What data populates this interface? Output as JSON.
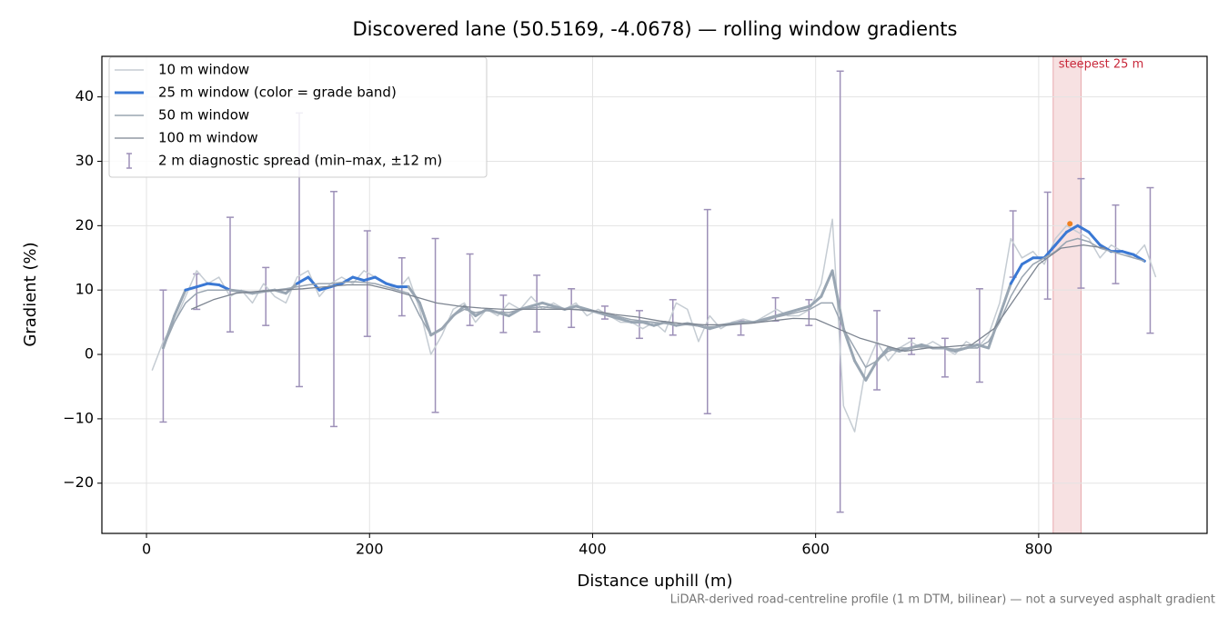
{
  "chart_data": {
    "type": "line",
    "title": "Discovered lane (50.5169, -4.0678) — rolling window gradients",
    "x_label": "Distance uphill (m)",
    "y_label": "Gradient (%)",
    "footnote": "LiDAR-derived road-centreline profile (1 m DTM, bilinear) — not a surveyed asphalt gradient",
    "xlim": [
      -40,
      951
    ],
    "ylim": [
      -27.8,
      46.3
    ],
    "xticks": [
      0,
      200,
      400,
      600,
      800
    ],
    "yticks": [
      {
        "value": -20,
        "label": "−20"
      },
      {
        "value": -10,
        "label": "−10"
      },
      0,
      10,
      20,
      30,
      40
    ],
    "grid": true,
    "legend": "upper left",
    "series": [
      {
        "name": "10 m window",
        "color": "#c5ccd3",
        "width": 1.5,
        "x": [
          5,
          15,
          25,
          35,
          45,
          55,
          65,
          75,
          85,
          95,
          105,
          115,
          125,
          135,
          145,
          155,
          165,
          175,
          185,
          195,
          205,
          215,
          225,
          235,
          245,
          255,
          265,
          275,
          285,
          295,
          305,
          315,
          325,
          335,
          345,
          355,
          365,
          375,
          385,
          395,
          405,
          415,
          425,
          435,
          445,
          455,
          465,
          475,
          485,
          495,
          505,
          515,
          525,
          535,
          545,
          555,
          565,
          575,
          585,
          595,
          605,
          615,
          625,
          635,
          645,
          655,
          665,
          675,
          685,
          695,
          705,
          715,
          725,
          735,
          745,
          755,
          765,
          775,
          785,
          795,
          805,
          815,
          825,
          835,
          845,
          855,
          865,
          875,
          885,
          895,
          905
        ],
        "values": [
          -2.5,
          2,
          5,
          9,
          13,
          11,
          12,
          9,
          10,
          8,
          11,
          9,
          8,
          12,
          13,
          9,
          11,
          12,
          11,
          13,
          12,
          11,
          10,
          12,
          7,
          0,
          3,
          7,
          8,
          5,
          7,
          6,
          8,
          7,
          9,
          7,
          8,
          7,
          8,
          6,
          7,
          6,
          5,
          5,
          4,
          5,
          3.5,
          8,
          7,
          2,
          6,
          4,
          5,
          5.5,
          5,
          6,
          7,
          6,
          6,
          7,
          11,
          21,
          -8,
          -12,
          -2,
          2,
          -1,
          1,
          2,
          1,
          2,
          1,
          0,
          2,
          1,
          3,
          8,
          18,
          15,
          16,
          14,
          18,
          20,
          19,
          18,
          15,
          17,
          16,
          15,
          17,
          12
        ]
      },
      {
        "name": "25 m window (color = grade band)",
        "color": "#3a78d4",
        "low_color": "#99a6b3",
        "band_min": 10,
        "width": 3,
        "x": [
          15,
          25,
          35,
          45,
          55,
          65,
          75,
          85,
          95,
          105,
          115,
          125,
          135,
          145,
          155,
          165,
          175,
          185,
          195,
          205,
          215,
          225,
          235,
          245,
          255,
          265,
          275,
          285,
          295,
          305,
          315,
          325,
          335,
          345,
          355,
          365,
          375,
          385,
          395,
          405,
          415,
          425,
          435,
          445,
          455,
          465,
          475,
          485,
          495,
          505,
          515,
          525,
          535,
          545,
          555,
          565,
          575,
          585,
          595,
          605,
          615,
          625,
          635,
          645,
          655,
          665,
          675,
          685,
          695,
          705,
          715,
          725,
          735,
          745,
          755,
          765,
          775,
          785,
          795,
          805,
          815,
          825,
          835,
          845,
          855,
          865,
          875,
          885,
          895
        ],
        "values": [
          1,
          6,
          10,
          10.5,
          11,
          10.8,
          10,
          9.8,
          9.5,
          9.8,
          10,
          9.5,
          11,
          12,
          10,
          10.5,
          11,
          12,
          11.5,
          12,
          11,
          10.5,
          10.5,
          8,
          3,
          4,
          6,
          7.5,
          6,
          7,
          6.5,
          6,
          7,
          7.5,
          8,
          7.5,
          7,
          7.5,
          7,
          6.5,
          6,
          5.5,
          5,
          5,
          4.5,
          5,
          4.5,
          4.8,
          4.5,
          4,
          4.5,
          4.8,
          5,
          5,
          5.5,
          6,
          6.5,
          7,
          7.5,
          9,
          13,
          4,
          -1,
          -4,
          -1,
          1,
          0.5,
          1,
          1.5,
          1,
          1,
          0.5,
          1,
          1.5,
          1,
          6,
          11,
          14,
          15,
          15,
          17,
          19,
          20,
          19,
          17,
          16,
          16,
          15.5,
          14.5
        ]
      },
      {
        "name": "50 m window",
        "color": "#9aa5b1",
        "width": 1.5,
        "x": [
          15,
          25,
          35,
          45,
          55,
          65,
          75,
          85,
          95,
          105,
          115,
          125,
          135,
          145,
          155,
          165,
          175,
          185,
          195,
          205,
          215,
          225,
          235,
          245,
          255,
          265,
          275,
          285,
          295,
          305,
          315,
          325,
          335,
          345,
          355,
          365,
          375,
          385,
          395,
          405,
          415,
          425,
          435,
          445,
          455,
          465,
          475,
          485,
          495,
          505,
          515,
          525,
          535,
          545,
          555,
          565,
          575,
          585,
          595,
          605,
          615,
          625,
          635,
          645,
          655,
          665,
          675,
          685,
          695,
          705,
          715,
          725,
          735,
          745,
          755,
          765,
          775,
          785,
          795,
          805,
          815,
          825,
          835,
          845,
          855,
          865,
          875,
          885,
          895
        ],
        "values": [
          1,
          5,
          8,
          9.5,
          10,
          10,
          10,
          9.8,
          9.6,
          9.7,
          10,
          10.2,
          10.5,
          10.8,
          11,
          11,
          11.2,
          11.3,
          11.2,
          11,
          10.5,
          10,
          9.5,
          6,
          3,
          4,
          6,
          7,
          6.5,
          6.8,
          6.6,
          6.5,
          7,
          7.2,
          7.4,
          7.2,
          7,
          7,
          6.8,
          6.5,
          6.2,
          5.8,
          5.4,
          5.2,
          5,
          4.8,
          4.6,
          4.6,
          4.4,
          4.3,
          4.4,
          4.6,
          4.8,
          5,
          5.3,
          5.8,
          6.2,
          6.6,
          7,
          8,
          8,
          4,
          1,
          -2,
          -1,
          0.5,
          1,
          1,
          1.2,
          1,
          1,
          0.8,
          1,
          1,
          2,
          5,
          9,
          12,
          14,
          15,
          16,
          17.5,
          18,
          17.5,
          16.5,
          16,
          15.5,
          15,
          14.5
        ]
      },
      {
        "name": "100 m window",
        "color": "#7c8490",
        "width": 1.3,
        "x": [
          40,
          60,
          80,
          100,
          120,
          140,
          160,
          180,
          200,
          220,
          240,
          260,
          280,
          300,
          320,
          340,
          360,
          380,
          400,
          420,
          440,
          460,
          480,
          500,
          520,
          540,
          560,
          580,
          600,
          620,
          640,
          660,
          680,
          700,
          720,
          740,
          760,
          780,
          800,
          820,
          840,
          860
        ],
        "values": [
          7,
          8.5,
          9.5,
          9.8,
          10,
          10.2,
          10.5,
          10.8,
          10.8,
          10,
          9,
          8,
          7.5,
          7.2,
          7,
          7,
          7,
          7,
          6.8,
          6.2,
          5.8,
          5.2,
          4.8,
          4.6,
          4.6,
          4.8,
          5.2,
          5.6,
          5.5,
          4,
          2.5,
          1.5,
          0.5,
          1,
          1.2,
          1.5,
          4,
          9,
          14,
          16.5,
          17,
          16.5
        ]
      }
    ],
    "spread": {
      "name": "2 m diagnostic spread (min–max, ±12 m)",
      "color": "#9d90b8",
      "x": [
        15,
        45,
        75,
        107,
        137,
        168,
        198,
        229,
        259,
        290,
        320,
        350,
        381,
        411,
        442,
        472,
        503,
        533,
        564,
        594,
        622,
        655,
        686,
        716,
        747,
        777,
        808,
        838,
        869,
        900
      ],
      "low": [
        -10.5,
        7,
        3.5,
        4.5,
        -5,
        -11.2,
        2.8,
        6,
        -9,
        4.5,
        3.4,
        3.5,
        4.2,
        5.5,
        2.5,
        3,
        -9.2,
        3,
        5.2,
        4.5,
        -24.5,
        -5.5,
        0,
        -3.5,
        -4.3,
        12,
        8.6,
        10.3,
        11,
        3.3
      ],
      "high": [
        10,
        12.5,
        21.3,
        13.5,
        37.5,
        25.3,
        19.2,
        15,
        18,
        15.6,
        9.2,
        12.3,
        10.2,
        7.5,
        6.8,
        8.5,
        22.5,
        5.2,
        8.8,
        8.5,
        44,
        6.8,
        2.5,
        2.5,
        10.2,
        22.3,
        25.2,
        27.3,
        23.2,
        25.9
      ]
    },
    "highlight": {
      "xlim": [
        813,
        838
      ],
      "label": "steepest 25 m",
      "color": "#e8a8ac",
      "text_color": "#c8283a"
    },
    "peak_marker": {
      "x": 828,
      "y": 20.3,
      "color": "#f08020"
    }
  }
}
